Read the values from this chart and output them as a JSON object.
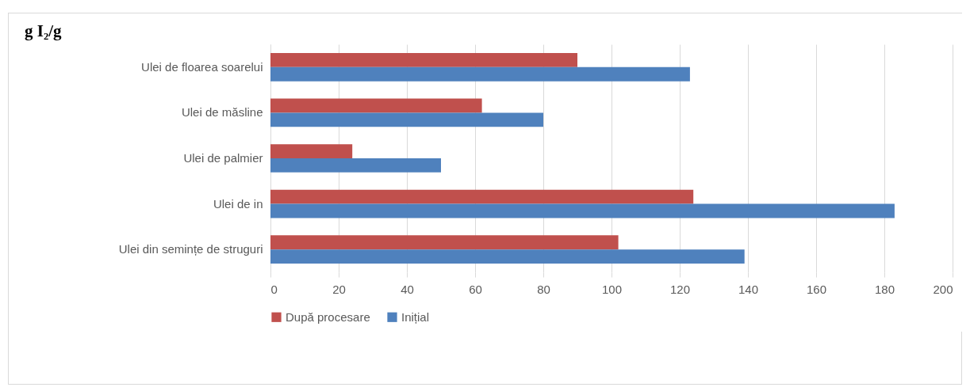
{
  "chart_data": {
    "type": "bar",
    "orientation": "horizontal",
    "title": "g I₂/g",
    "categories": [
      "Ulei de floarea soarelui",
      "Ulei de măsline",
      "Ulei de palmier",
      "Ulei de in",
      "Ulei din semințe de struguri"
    ],
    "series": [
      {
        "name": "După procesare",
        "color": "#c0504d",
        "values": [
          90,
          62,
          24,
          124,
          102
        ]
      },
      {
        "name": "Inițial",
        "color": "#4f81bd",
        "values": [
          123,
          80,
          50,
          183,
          139
        ]
      }
    ],
    "xlim": [
      0,
      200
    ],
    "xticks": [
      0,
      20,
      40,
      60,
      80,
      100,
      120,
      140,
      160,
      180,
      200
    ],
    "grid": "x",
    "legend": "bottom"
  }
}
